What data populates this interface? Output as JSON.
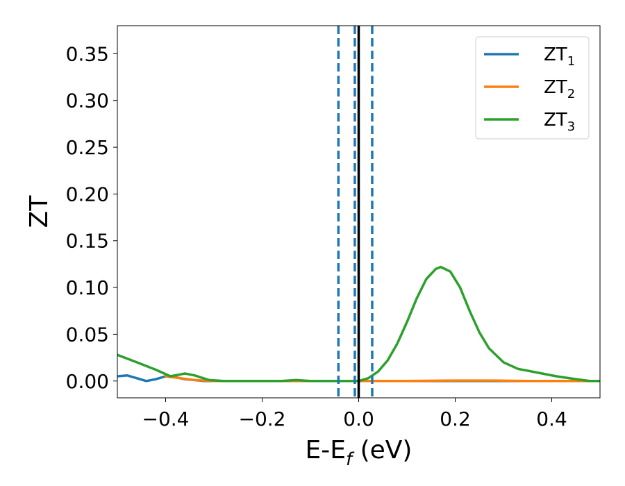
{
  "chart_data": {
    "type": "line",
    "xlabel": "E-E",
    "xlabel_sub": "f",
    "xlabel_unit": " (eV)",
    "ylabel": "ZT",
    "xlim": [
      -0.5,
      0.5
    ],
    "ylim": [
      -0.018,
      0.38
    ],
    "xticks": [
      -0.4,
      -0.2,
      0.0,
      0.2,
      0.4
    ],
    "xtick_labels": [
      "−0.4",
      "−0.2",
      "0.0",
      "0.2",
      "0.4"
    ],
    "yticks": [
      0.0,
      0.05,
      0.1,
      0.15,
      0.2,
      0.25,
      0.3,
      0.35
    ],
    "ytick_labels": [
      "0.00",
      "0.05",
      "0.10",
      "0.15",
      "0.20",
      "0.25",
      "0.30",
      "0.35"
    ],
    "grid": false,
    "legend_position": "top-right",
    "vlines": [
      {
        "x": -0.042,
        "style": "dashed",
        "color": "#1f77b4"
      },
      {
        "x": -0.008,
        "style": "dashed",
        "color": "#1f77b4"
      },
      {
        "x": 0.028,
        "style": "dashed",
        "color": "#1f77b4"
      },
      {
        "x": 0.0,
        "style": "solid",
        "color": "#000000"
      }
    ],
    "series": [
      {
        "name": "ZT",
        "name_sub": "1",
        "color": "#1f77b4",
        "points": [
          [
            -0.5,
            0.005
          ],
          [
            -0.48,
            0.006
          ],
          [
            -0.46,
            0.003
          ],
          [
            -0.44,
            0.0
          ],
          [
            -0.42,
            0.002
          ],
          [
            -0.4,
            0.005
          ],
          [
            -0.38,
            0.004
          ],
          [
            -0.36,
            0.002
          ],
          [
            -0.32,
            0.0
          ],
          [
            -0.28,
            0.0
          ],
          [
            0.5,
            0.0
          ]
        ]
      },
      {
        "name": "ZT",
        "name_sub": "2",
        "color": "#ff7f0e",
        "points": [
          [
            -0.4,
            0.005
          ],
          [
            -0.37,
            0.003
          ],
          [
            -0.34,
            0.001
          ],
          [
            -0.3,
            0.0
          ],
          [
            0.0,
            0.0
          ],
          [
            0.1,
            0.0
          ],
          [
            0.2,
            0.0005
          ],
          [
            0.28,
            0.0005
          ],
          [
            0.35,
            0.0
          ],
          [
            0.5,
            0.0
          ]
        ]
      },
      {
        "name": "ZT",
        "name_sub": "3",
        "color": "#2ca02c",
        "points": [
          [
            -0.5,
            0.028
          ],
          [
            -0.46,
            0.02
          ],
          [
            -0.42,
            0.012
          ],
          [
            -0.39,
            0.005
          ],
          [
            -0.36,
            0.008
          ],
          [
            -0.34,
            0.006
          ],
          [
            -0.31,
            0.001
          ],
          [
            -0.28,
            0.0
          ],
          [
            -0.2,
            0.0
          ],
          [
            -0.16,
            0.0
          ],
          [
            -0.13,
            0.001
          ],
          [
            -0.1,
            0.0
          ],
          [
            0.0,
            0.0
          ],
          [
            0.02,
            0.003
          ],
          [
            0.04,
            0.01
          ],
          [
            0.06,
            0.022
          ],
          [
            0.08,
            0.04
          ],
          [
            0.1,
            0.063
          ],
          [
            0.12,
            0.088
          ],
          [
            0.14,
            0.109
          ],
          [
            0.16,
            0.12
          ],
          [
            0.17,
            0.122
          ],
          [
            0.19,
            0.117
          ],
          [
            0.21,
            0.1
          ],
          [
            0.23,
            0.075
          ],
          [
            0.25,
            0.052
          ],
          [
            0.27,
            0.035
          ],
          [
            0.3,
            0.02
          ],
          [
            0.33,
            0.013
          ],
          [
            0.37,
            0.009
          ],
          [
            0.41,
            0.005
          ],
          [
            0.45,
            0.002
          ],
          [
            0.48,
            0.0
          ],
          [
            0.5,
            0.0
          ]
        ]
      }
    ]
  }
}
